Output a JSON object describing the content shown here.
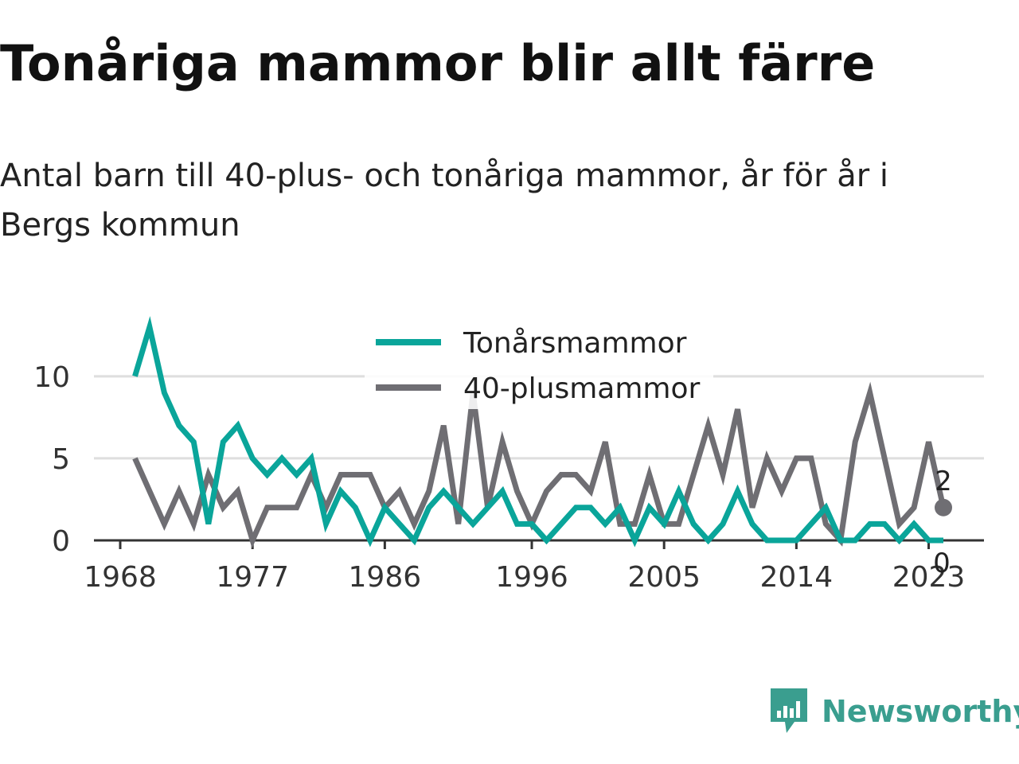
{
  "title": "Tonåriga mammor blir allt färre",
  "subtitle": "Antal barn till 40-plus- och tonåriga mammor, år för år i Bergs kommun",
  "brand": "Newsworthy",
  "colors": {
    "teal": "#0aa59a",
    "gray": "#6f6e73",
    "grid": "#dedede",
    "axis": "#333333",
    "brand": "#3a9e8f"
  },
  "chart_data": {
    "type": "line",
    "x": [
      1969,
      1970,
      1971,
      1972,
      1973,
      1974,
      1975,
      1976,
      1977,
      1978,
      1979,
      1980,
      1981,
      1982,
      1983,
      1984,
      1985,
      1986,
      1987,
      1988,
      1989,
      1990,
      1991,
      1992,
      1993,
      1994,
      1995,
      1996,
      1997,
      1998,
      1999,
      2000,
      2001,
      2002,
      2003,
      2004,
      2005,
      2006,
      2007,
      2008,
      2009,
      2010,
      2011,
      2012,
      2013,
      2014,
      2015,
      2016,
      2017,
      2018,
      2019,
      2020,
      2021,
      2022,
      2023,
      2024
    ],
    "series": [
      {
        "name": "Tonårsmammor",
        "color": "#0aa59a",
        "values": [
          10,
          13,
          9,
          7,
          6,
          1,
          6,
          7,
          5,
          4,
          5,
          4,
          5,
          1,
          3,
          2,
          0,
          2,
          1,
          0,
          2,
          3,
          2,
          1,
          2,
          3,
          1,
          1,
          0,
          1,
          2,
          2,
          1,
          2,
          0,
          2,
          1,
          3,
          1,
          0,
          1,
          3,
          1,
          0,
          0,
          0,
          1,
          2,
          0,
          0,
          1,
          1,
          0,
          1,
          0,
          0
        ]
      },
      {
        "name": "40-plusmammor",
        "color": "#6f6e73",
        "values": [
          5,
          3,
          1,
          3,
          1,
          4,
          2,
          3,
          0,
          2,
          2,
          2,
          4,
          2,
          4,
          4,
          4,
          2,
          3,
          1,
          3,
          7,
          1,
          9,
          2,
          6,
          3,
          1,
          3,
          4,
          4,
          3,
          6,
          1,
          1,
          4,
          1,
          1,
          4,
          7,
          4,
          8,
          2,
          5,
          3,
          5,
          5,
          1,
          0,
          6,
          9,
          5,
          1,
          2,
          6,
          2
        ]
      }
    ],
    "x_ticks": [
      "1968",
      "1977",
      "1986",
      "1996",
      "2005",
      "2014",
      "2023"
    ],
    "y_ticks": [
      "0",
      "5",
      "10"
    ],
    "end_labels": [
      "2",
      "0"
    ],
    "xlim": [
      1968,
      2024
    ],
    "ylim": [
      0,
      13
    ],
    "grid": true,
    "legend_position": "top-center",
    "xlabel": "",
    "ylabel": ""
  }
}
